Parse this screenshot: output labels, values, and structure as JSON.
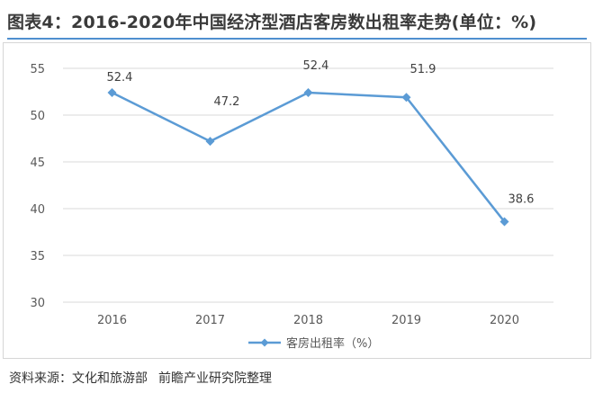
{
  "title": "图表4：2016-2020年中国经济型酒店客房数出租率走势(单位：%)",
  "source": {
    "label": "资料来源：",
    "org1": "文化和旅游部",
    "org2": "前瞻产业研究院整理"
  },
  "colors": {
    "series": "#5b9bd5",
    "grid": "#d9d9d9",
    "axis_text": "#595959",
    "title_rule": "#4f8fcf"
  },
  "chart_data": {
    "type": "line",
    "title": "",
    "xlabel": "",
    "ylabel": "",
    "categories": [
      "2016",
      "2017",
      "2018",
      "2019",
      "2020"
    ],
    "series": [
      {
        "name": "客房出租率（%）",
        "values": [
          52.4,
          47.2,
          52.4,
          51.9,
          38.6
        ],
        "labels": [
          "52.4",
          "47.2",
          "52.4",
          "51.9",
          "38.6"
        ]
      }
    ],
    "ylim": [
      30,
      55
    ],
    "yticks": [
      "30",
      "35",
      "40",
      "45",
      "50",
      "55"
    ],
    "grid": true,
    "legend": "bottom-center"
  }
}
